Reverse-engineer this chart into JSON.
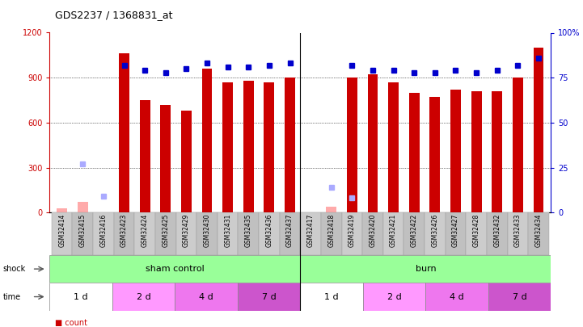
{
  "title": "GDS2237 / 1368831_at",
  "samples": [
    "GSM32414",
    "GSM32415",
    "GSM32416",
    "GSM32423",
    "GSM32424",
    "GSM32425",
    "GSM32429",
    "GSM32430",
    "GSM32431",
    "GSM32435",
    "GSM32436",
    "GSM32437",
    "GSM32417",
    "GSM32418",
    "GSM32419",
    "GSM32420",
    "GSM32421",
    "GSM32422",
    "GSM32426",
    "GSM32427",
    "GSM32428",
    "GSM32432",
    "GSM32433",
    "GSM32434"
  ],
  "count_values": [
    30,
    70,
    0,
    1060,
    750,
    720,
    680,
    960,
    870,
    880,
    870,
    900,
    0,
    40,
    900,
    920,
    870,
    800,
    770,
    820,
    810,
    810,
    900,
    1100
  ],
  "percentile_values": [
    null,
    null,
    null,
    82,
    79,
    78,
    80,
    83,
    81,
    81,
    82,
    83,
    null,
    null,
    82,
    79,
    79,
    78,
    78,
    79,
    78,
    79,
    82,
    86
  ],
  "absent_count": [
    30,
    70,
    0,
    null,
    null,
    null,
    null,
    null,
    null,
    null,
    null,
    null,
    0,
    40,
    null,
    null,
    null,
    null,
    null,
    null,
    null,
    null,
    null,
    null
  ],
  "absent_rank": [
    null,
    27,
    9,
    null,
    null,
    null,
    null,
    null,
    null,
    null,
    null,
    null,
    null,
    null,
    null,
    null,
    null,
    null,
    null,
    null,
    null,
    null,
    null,
    null
  ],
  "absent_rank2": [
    null,
    null,
    null,
    null,
    null,
    null,
    null,
    null,
    null,
    null,
    null,
    null,
    null,
    14,
    8,
    null,
    null,
    null,
    null,
    null,
    null,
    null,
    null,
    null
  ],
  "ylim_left": [
    0,
    1200
  ],
  "ylim_right": [
    0,
    100
  ],
  "yticks_left": [
    0,
    300,
    600,
    900,
    1200
  ],
  "yticks_right": [
    0,
    25,
    50,
    75,
    100
  ],
  "ytick_labels_right": [
    "0",
    "25",
    "50",
    "75",
    "100%"
  ],
  "bar_color": "#cc0000",
  "dot_color": "#0000cc",
  "absent_bar_color": "#ffaaaa",
  "absent_dot_color": "#aaaaff",
  "shock_groups": [
    {
      "label": "sham control",
      "start": 0,
      "end": 12,
      "color": "#99ff99"
    },
    {
      "label": "burn",
      "start": 12,
      "end": 24,
      "color": "#99ff99"
    }
  ],
  "time_groups": [
    {
      "label": "1 d",
      "start": 0,
      "end": 3,
      "color": "#ffffff"
    },
    {
      "label": "2 d",
      "start": 3,
      "end": 6,
      "color": "#ff99ff"
    },
    {
      "label": "4 d",
      "start": 6,
      "end": 9,
      "color": "#ee77ee"
    },
    {
      "label": "7 d",
      "start": 9,
      "end": 12,
      "color": "#cc55cc"
    },
    {
      "label": "1 d",
      "start": 12,
      "end": 15,
      "color": "#ffffff"
    },
    {
      "label": "2 d",
      "start": 15,
      "end": 18,
      "color": "#ff99ff"
    },
    {
      "label": "4 d",
      "start": 18,
      "end": 21,
      "color": "#ee77ee"
    },
    {
      "label": "7 d",
      "start": 21,
      "end": 24,
      "color": "#cc55cc"
    }
  ]
}
